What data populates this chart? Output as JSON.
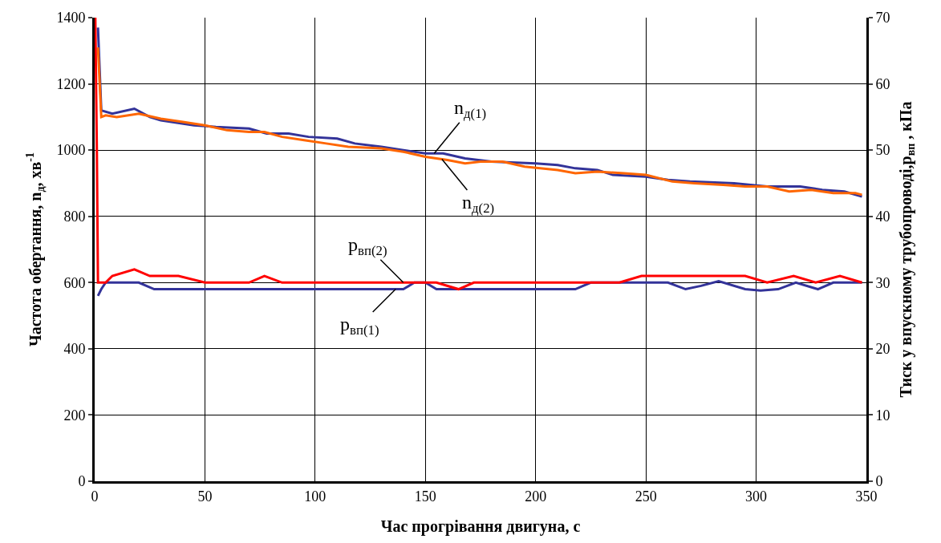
{
  "chart_data": {
    "type": "line",
    "xlabel": "Час прогрівання двигуна, с",
    "ylabel": "Частота обертання, n$_{д}$, хв$^{-1}$",
    "y2label": "Тиск у впускному трубопроводі,p$_{вп}$ , кПа",
    "xlim": [
      0,
      350
    ],
    "xticks": [
      0,
      50,
      100,
      150,
      200,
      250,
      300,
      350
    ],
    "ylim": [
      0,
      1400
    ],
    "yticks": [
      0,
      200,
      400,
      600,
      800,
      1000,
      1200,
      1400
    ],
    "y2lim": [
      0,
      70
    ],
    "y2ticks": [
      0,
      10,
      20,
      30,
      40,
      50,
      60,
      70
    ],
    "grid": true,
    "legend": false,
    "marker": "none",
    "line_style": "solid",
    "series": [
      {
        "name": "n$_{д(1)}$",
        "color": "#333399",
        "x": [
          1.5,
          3,
          8,
          18,
          25,
          30,
          45,
          55,
          70,
          78,
          88,
          97,
          110,
          118,
          130,
          140,
          150,
          158,
          168,
          180,
          200,
          210,
          218,
          228,
          235,
          250,
          260,
          270,
          290,
          305,
          320,
          330,
          340,
          348
        ],
        "values": [
          1370,
          1120,
          1110,
          1125,
          1100,
          1090,
          1075,
          1070,
          1065,
          1050,
          1050,
          1040,
          1035,
          1020,
          1010,
          1000,
          990,
          990,
          975,
          965,
          960,
          955,
          945,
          940,
          925,
          920,
          910,
          905,
          900,
          890,
          890,
          880,
          875,
          860
        ]
      },
      {
        "name": "n$_{д(2)}$",
        "color": "#ff6600",
        "x": [
          1.5,
          3,
          5,
          10,
          20,
          30,
          40,
          50,
          60,
          70,
          77,
          85,
          95,
          105,
          115,
          130,
          140,
          150,
          160,
          168,
          175,
          185,
          195,
          210,
          218,
          228,
          240,
          250,
          262,
          272,
          285,
          295,
          305,
          315,
          325,
          335,
          345,
          348
        ],
        "values": [
          1310,
          1100,
          1105,
          1100,
          1110,
          1095,
          1085,
          1075,
          1060,
          1055,
          1055,
          1040,
          1030,
          1020,
          1010,
          1005,
          995,
          980,
          970,
          960,
          965,
          965,
          950,
          940,
          930,
          935,
          930,
          925,
          905,
          900,
          895,
          890,
          890,
          875,
          880,
          870,
          870,
          865
        ]
      },
      {
        "name": "p$_{вп(1)}$",
        "color": "#333399",
        "axis": "y2",
        "x": [
          1.5,
          3,
          5,
          20,
          27,
          140,
          145,
          150,
          155,
          218,
          225,
          260,
          268,
          275,
          283,
          295,
          302,
          310,
          318,
          328,
          335,
          348
        ],
        "values": [
          28,
          29,
          30,
          30,
          29,
          29,
          30,
          30,
          29,
          29,
          30,
          30,
          29,
          29.5,
          30.2,
          29,
          28.8,
          29,
          30,
          29,
          30,
          30
        ]
      },
      {
        "name": "p$_{вп(2)}$",
        "color": "#ff0000",
        "axis": "y2",
        "x": [
          0.3,
          1,
          1.5,
          5,
          8,
          18,
          25,
          38,
          50,
          70,
          77,
          85,
          155,
          165,
          172,
          238,
          248,
          295,
          305,
          317,
          327,
          338,
          348
        ],
        "values": [
          70,
          50,
          30,
          30,
          31,
          32,
          31,
          31,
          30,
          30,
          31,
          30,
          30,
          29,
          30,
          30,
          31,
          31,
          30,
          31,
          30,
          31,
          30
        ]
      }
    ]
  }
}
